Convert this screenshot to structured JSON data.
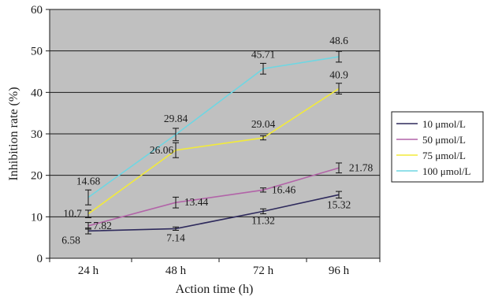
{
  "chart_data": {
    "type": "line",
    "title": "",
    "xlabel": "Action time (h)",
    "ylabel": "Inhibition rate (%)",
    "categories": [
      "24 h",
      "48 h",
      "72 h",
      "96 h"
    ],
    "ylim": [
      0,
      60
    ],
    "yticks": [
      0,
      10,
      20,
      30,
      40,
      50,
      60
    ],
    "grid": "horizontal",
    "legend_position": "right",
    "plot_background": "#c0c0c0",
    "series": [
      {
        "name": "10 μmol/L",
        "color": "#2e2a5c",
        "values": [
          6.58,
          7.14,
          11.32,
          15.32
        ],
        "labels": [
          "6.58",
          "7.14",
          "11.32",
          "15.32"
        ],
        "errors": [
          0.7,
          0.4,
          0.6,
          0.8
        ]
      },
      {
        "name": "50 μmol/L",
        "color": "#b264a8",
        "values": [
          7.82,
          13.44,
          16.46,
          21.78
        ],
        "labels": [
          "7.82",
          "13.44",
          "16.46",
          "21.78"
        ],
        "errors": [
          0.8,
          1.3,
          0.5,
          1.2
        ]
      },
      {
        "name": "75 μmol/L",
        "color": "#f2ea3a",
        "values": [
          10.7,
          26.06,
          29.04,
          40.9
        ],
        "labels": [
          "10.7",
          "26.06",
          "29.04",
          "40.9"
        ],
        "errors": [
          0.9,
          1.8,
          0.5,
          1.3
        ]
      },
      {
        "name": "100 μmol/L",
        "color": "#6fd6e2",
        "values": [
          14.68,
          29.84,
          45.71,
          48.6
        ],
        "labels": [
          "14.68",
          "29.84",
          "45.71",
          "48.6"
        ],
        "errors": [
          1.8,
          1.5,
          1.3,
          1.3
        ]
      }
    ]
  }
}
